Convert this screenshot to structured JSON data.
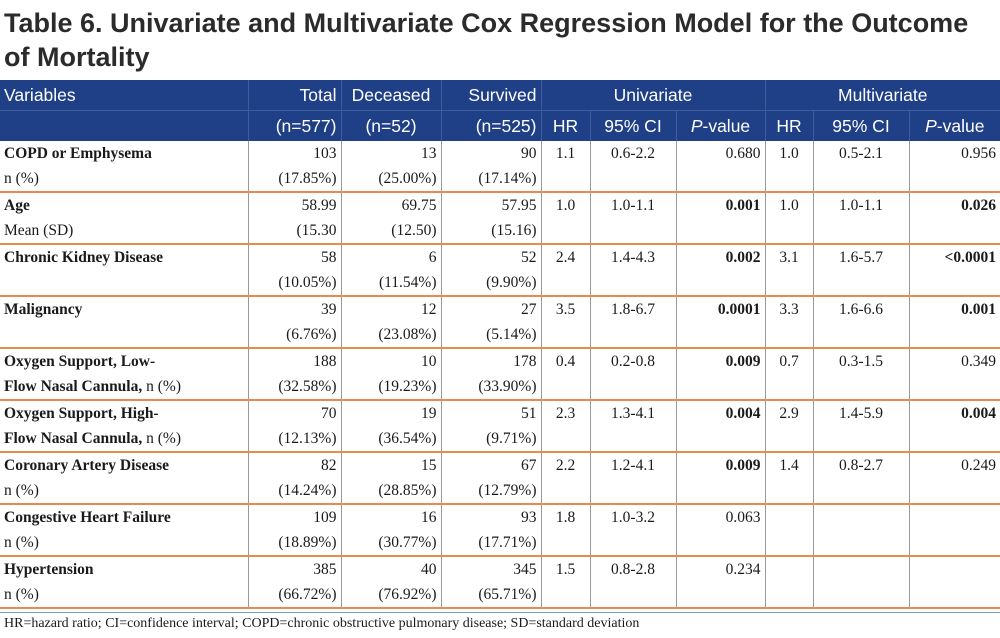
{
  "title": "Table 6. Univariate and Multivariate Cox Regression Model for the Outcome of Mortality",
  "header": {
    "variables": "Variables",
    "total": "Total",
    "total_n": "(n=577)",
    "deceased": "Deceased",
    "deceased_n": "(n=52)",
    "survived": "Survived",
    "survived_n": "(n=525)",
    "univariate": "Univariate",
    "multivariate": "Multivariate",
    "hr": "HR",
    "ci": "95% CI",
    "pvalue_italic": "P",
    "pvalue_rest": "-value"
  },
  "rows": [
    {
      "line1": {
        "name": "COPD or Emphysema",
        "suffix": "",
        "total": "103",
        "deceased": "13",
        "survived": "90",
        "u_hr": "1.1",
        "u_ci": "0.6-2.2",
        "u_p": "0.680",
        "u_p_bold": false,
        "m_hr": "1.0",
        "m_ci": "0.5-2.1",
        "m_p": "0.956",
        "m_p_bold": false
      },
      "line2": {
        "name": "n (%)",
        "total": "(17.85%)",
        "deceased": "(25.00%)",
        "survived": "(17.14%)"
      }
    },
    {
      "line1": {
        "name": "Age",
        "suffix": "",
        "total": "58.99",
        "deceased": "69.75",
        "survived": "57.95",
        "u_hr": "1.0",
        "u_ci": "1.0-1.1",
        "u_p": "0.001",
        "u_p_bold": true,
        "m_hr": "1.0",
        "m_ci": "1.0-1.1",
        "m_p": "0.026",
        "m_p_bold": true
      },
      "line2": {
        "name": "Mean (SD)",
        "total": "(15.30",
        "deceased": "(12.50)",
        "survived": "(15.16)"
      }
    },
    {
      "line1": {
        "name": "Chronic Kidney Disease",
        "suffix": "",
        "total": "58",
        "deceased": "6",
        "survived": "52",
        "u_hr": "2.4",
        "u_ci": "1.4-4.3",
        "u_p": "0.002",
        "u_p_bold": true,
        "m_hr": "3.1",
        "m_ci": "1.6-5.7",
        "m_p": "<0.0001",
        "m_p_bold": true
      },
      "line2": {
        "name": "",
        "total": "(10.05%)",
        "deceased": "(11.54%)",
        "survived": "(9.90%)"
      }
    },
    {
      "line1": {
        "name": "Malignancy",
        "suffix": "",
        "total": "39",
        "deceased": "12",
        "survived": "27",
        "u_hr": "3.5",
        "u_ci": "1.8-6.7",
        "u_p": "0.0001",
        "u_p_bold": true,
        "m_hr": "3.3",
        "m_ci": "1.6-6.6",
        "m_p": "0.001",
        "m_p_bold": true
      },
      "line2": {
        "name": "",
        "total": "(6.76%)",
        "deceased": "(23.08%)",
        "survived": "(5.14%)"
      }
    },
    {
      "line1": {
        "name": "Oxygen Support, Low-",
        "suffix": "",
        "total": "188",
        "deceased": "10",
        "survived": "178",
        "u_hr": "0.4",
        "u_ci": "0.2-0.8",
        "u_p": "0.009",
        "u_p_bold": true,
        "m_hr": "0.7",
        "m_ci": "0.3-1.5",
        "m_p": "0.349",
        "m_p_bold": false
      },
      "line2": {
        "name": "Flow Nasal Cannula,",
        "suffix": " n (%)",
        "total": "(32.58%)",
        "deceased": "(19.23%)",
        "survived": "(33.90%)"
      }
    },
    {
      "line1": {
        "name": "Oxygen Support, High-",
        "suffix": "",
        "total": "70",
        "deceased": "19",
        "survived": "51",
        "u_hr": "2.3",
        "u_ci": "1.3-4.1",
        "u_p": "0.004",
        "u_p_bold": true,
        "m_hr": "2.9",
        "m_ci": "1.4-5.9",
        "m_p": "0.004",
        "m_p_bold": true
      },
      "line2": {
        "name": "Flow Nasal Cannula,",
        "suffix": " n (%)",
        "total": "(12.13%)",
        "deceased": "(36.54%)",
        "survived": "(9.71%)"
      }
    },
    {
      "line1": {
        "name": "Coronary Artery Disease",
        "suffix": "",
        "total": "82",
        "deceased": "15",
        "survived": "67",
        "u_hr": "2.2",
        "u_ci": "1.2-4.1",
        "u_p": "0.009",
        "u_p_bold": true,
        "m_hr": "1.4",
        "m_ci": "0.8-2.7",
        "m_p": "0.249",
        "m_p_bold": false
      },
      "line2": {
        "name": "n (%)",
        "total": "(14.24%)",
        "deceased": "(28.85%)",
        "survived": "(12.79%)"
      }
    },
    {
      "line1": {
        "name": "Congestive Heart Failure",
        "suffix": "",
        "total": "109",
        "deceased": "16",
        "survived": "93",
        "u_hr": "1.8",
        "u_ci": "1.0-3.2",
        "u_p": "0.063",
        "u_p_bold": false,
        "m_hr": "",
        "m_ci": "",
        "m_p": "",
        "m_p_bold": false
      },
      "line2": {
        "name": "n (%)",
        "total": "(18.89%)",
        "deceased": "(30.77%)",
        "survived": "(17.71%)"
      }
    },
    {
      "line1": {
        "name": "Hypertension",
        "suffix": "",
        "total": "385",
        "deceased": "40",
        "survived": "345",
        "u_hr": "1.5",
        "u_ci": "0.8-2.8",
        "u_p": "0.234",
        "u_p_bold": false,
        "m_hr": "",
        "m_ci": "",
        "m_p": "",
        "m_p_bold": false
      },
      "line2": {
        "name": "n (%)",
        "total": "(66.72%)",
        "deceased": "(76.92%)",
        "survived": "(65.71%)"
      }
    }
  ],
  "footnote": "HR=hazard ratio; CI=confidence interval; COPD=chronic obstructive pulmonary disease; SD=standard deviation",
  "colors": {
    "header_bg": "#1f3f86",
    "row_separator": "#e8894e",
    "title_text": "#2b2b2b"
  }
}
